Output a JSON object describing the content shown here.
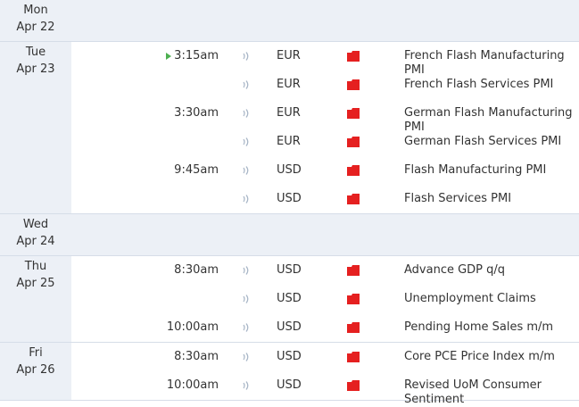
{
  "days": [
    {
      "weekday": "Mon",
      "date": "Apr 22",
      "events": []
    },
    {
      "weekday": "Tue",
      "date": "Apr 23",
      "events": [
        {
          "time": "3:15am",
          "current": true,
          "currency": "EUR",
          "title": "French Flash Manufacturing PMI"
        },
        {
          "time": "",
          "currency": "EUR",
          "title": "French Flash Services PMI"
        },
        {
          "time": "3:30am",
          "currency": "EUR",
          "title": "German Flash Manufacturing PMI"
        },
        {
          "time": "",
          "currency": "EUR",
          "title": "German Flash Services PMI"
        },
        {
          "time": "9:45am",
          "currency": "USD",
          "title": "Flash Manufacturing PMI"
        },
        {
          "time": "",
          "currency": "USD",
          "title": "Flash Services PMI"
        }
      ]
    },
    {
      "weekday": "Wed",
      "date": "Apr 24",
      "events": []
    },
    {
      "weekday": "Thu",
      "date": "Apr 25",
      "events": [
        {
          "time": "8:30am",
          "currency": "USD",
          "title": "Advance GDP q/q"
        },
        {
          "time": "",
          "currency": "USD",
          "title": "Unemployment Claims"
        },
        {
          "time": "10:00am",
          "currency": "USD",
          "title": "Pending Home Sales m/m"
        }
      ]
    },
    {
      "weekday": "Fri",
      "date": "Apr 26",
      "events": [
        {
          "time": "8:30am",
          "currency": "USD",
          "title": "Core PCE Price Index m/m"
        },
        {
          "time": "10:00am",
          "currency": "USD",
          "title": "Revised UoM Consumer Sentiment"
        }
      ]
    }
  ],
  "colors": {
    "high_impact": "#e52020",
    "play_marker": "#4caf50",
    "shaded_bg": "#ecf0f6",
    "border": "#d6dde8",
    "sound_icon": "#a7b5c6"
  },
  "icons": {
    "impact": "folder-impact-icon",
    "sound": "sound-icon",
    "current": "play-marker-icon"
  }
}
